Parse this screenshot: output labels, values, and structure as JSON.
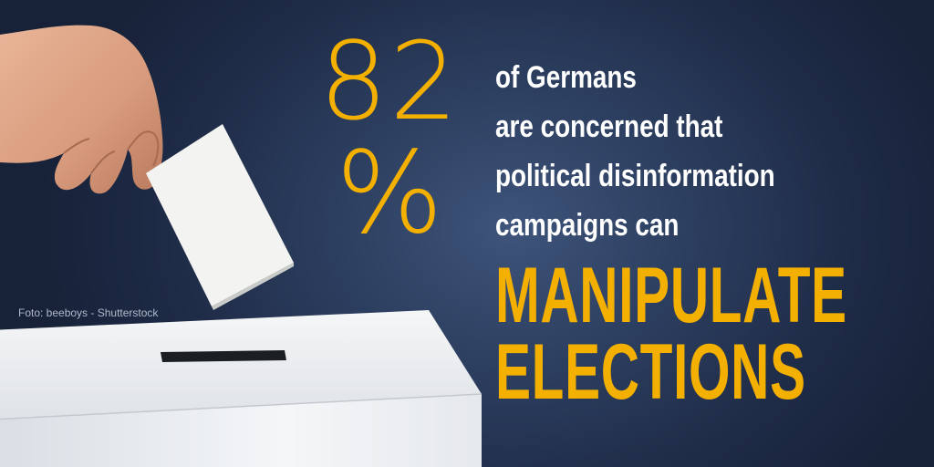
{
  "image": {
    "photo_credit": "Foto: beeboys - Shutterstock",
    "icons": [
      "hand-icon",
      "ballot-paper-icon",
      "ballot-box-icon"
    ]
  },
  "stat": {
    "number": "82",
    "unit": "%"
  },
  "message": {
    "lines": [
      "of Germans",
      "are concerned that",
      "political disinformation",
      "campaigns can"
    ],
    "headline_lines": [
      "MANIPULATE",
      "ELECTIONS"
    ]
  },
  "colors": {
    "background": "#2c3e5f",
    "accent": "#f4b000",
    "text": "#ffffff"
  }
}
